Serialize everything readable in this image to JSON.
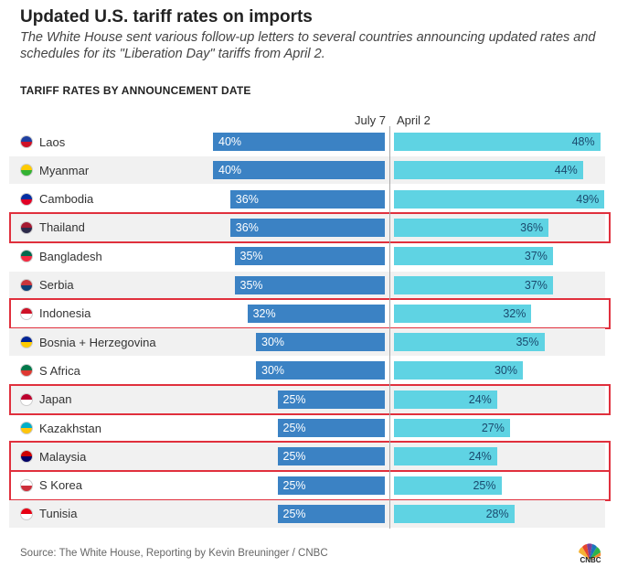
{
  "header": {
    "title": "Updated U.S. tariff rates on imports",
    "subtitle": "The White House sent various follow-up letters to several countries announcing updated rates and schedules for its \"Liberation Day\" tariffs from April 2.",
    "section_label": "TARIFF RATES BY ANNOUNCEMENT DATE"
  },
  "columns": {
    "july": "July 7",
    "april": "April 2"
  },
  "colors": {
    "july_bar": "#3b82c4",
    "april_bar": "#5fd3e3",
    "highlight_border": "#e0303d",
    "row_shade": "#f1f1f1"
  },
  "chart_data": {
    "type": "bar",
    "title": "TARIFF RATES BY ANNOUNCEMENT DATE",
    "categories": [
      "Laos",
      "Myanmar",
      "Cambodia",
      "Thailand",
      "Bangladesh",
      "Serbia",
      "Indonesia",
      "Bosnia + Herzegovina",
      "S Africa",
      "Japan",
      "Kazakhstan",
      "Malaysia",
      "S Korea",
      "Tunisia"
    ],
    "series": [
      {
        "name": "July 7",
        "values": [
          40,
          40,
          36,
          36,
          35,
          35,
          32,
          30,
          30,
          25,
          25,
          25,
          25,
          25
        ]
      },
      {
        "name": "April 2",
        "values": [
          48,
          44,
          49,
          36,
          37,
          37,
          32,
          35,
          30,
          24,
          27,
          24,
          25,
          28
        ]
      }
    ],
    "value_labels_july": [
      "40%",
      "40%",
      "36%",
      "36%",
      "35%",
      "35%",
      "32%",
      "30%",
      "30%",
      "25%",
      "25%",
      "25%",
      "25%",
      "25%"
    ],
    "value_labels_april": [
      "48%",
      "44%",
      "49%",
      "36%",
      "37%",
      "37%",
      "32%",
      "35%",
      "30%",
      "24%",
      "27%",
      "24%",
      "25%",
      "28%"
    ],
    "highlighted": [
      "Thailand",
      "Indonesia",
      "Japan",
      "Malaysia",
      "S Korea"
    ],
    "layout": "diverging back-to-back bars, July 7 extends left, April 2 extends right",
    "grid": false
  },
  "flags": [
    {
      "name": "laos-flag-icon",
      "colors": [
        "#1f3fa0",
        "#ce1126"
      ]
    },
    {
      "name": "myanmar-flag-icon",
      "colors": [
        "#fecb00",
        "#34b233"
      ]
    },
    {
      "name": "cambodia-flag-icon",
      "colors": [
        "#032ea1",
        "#e00025"
      ]
    },
    {
      "name": "thailand-flag-icon",
      "colors": [
        "#a51931",
        "#2d2a4a"
      ]
    },
    {
      "name": "bangladesh-flag-icon",
      "colors": [
        "#006a4e",
        "#f42a41"
      ]
    },
    {
      "name": "serbia-flag-icon",
      "colors": [
        "#c6363c",
        "#0c4076"
      ]
    },
    {
      "name": "indonesia-flag-icon",
      "colors": [
        "#ce1126",
        "#ffffff"
      ]
    },
    {
      "name": "bosnia-flag-icon",
      "colors": [
        "#002395",
        "#fecb00"
      ]
    },
    {
      "name": "south-africa-flag-icon",
      "colors": [
        "#007749",
        "#de3831"
      ]
    },
    {
      "name": "japan-flag-icon",
      "colors": [
        "#bc002d",
        "#ffffff"
      ]
    },
    {
      "name": "kazakhstan-flag-icon",
      "colors": [
        "#00afca",
        "#fec50c"
      ]
    },
    {
      "name": "malaysia-flag-icon",
      "colors": [
        "#cc0001",
        "#010066"
      ]
    },
    {
      "name": "south-korea-flag-icon",
      "colors": [
        "#ffffff",
        "#cd2e3a"
      ]
    },
    {
      "name": "tunisia-flag-icon",
      "colors": [
        "#e70013",
        "#ffffff"
      ]
    }
  ],
  "footer": {
    "source": "Source: The White House, Reporting by Kevin Breuninger / CNBC",
    "logo_text": "CNBC",
    "logo_icon": "cnbc-peacock-icon"
  }
}
